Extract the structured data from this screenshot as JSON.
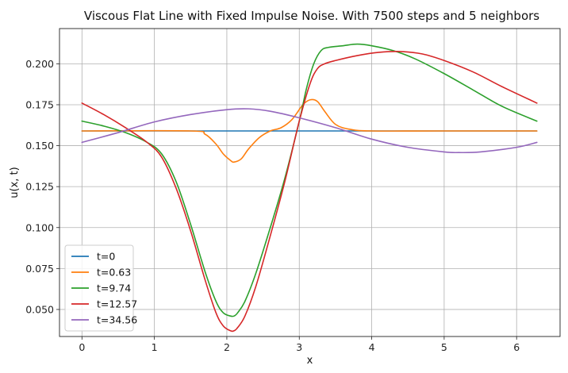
{
  "chart_data": {
    "type": "line",
    "title": "Viscous Flat Line with Fixed Impulse Noise. With 7500 steps and 5 neighbors",
    "xlabel": "x",
    "ylabel": "u(x, t)",
    "xlim": [
      -0.31,
      6.6
    ],
    "ylim": [
      0.0335,
      0.2215
    ],
    "xticks": [
      0,
      1,
      2,
      3,
      4,
      5,
      6
    ],
    "xtick_labels": [
      "0",
      "1",
      "2",
      "3",
      "4",
      "5",
      "6"
    ],
    "yticks": [
      0.05,
      0.075,
      0.1,
      0.125,
      0.15,
      0.175,
      0.2
    ],
    "ytick_labels": [
      "0.050",
      "0.075",
      "0.100",
      "0.125",
      "0.150",
      "0.175",
      "0.200"
    ],
    "grid": true,
    "legend_position": "bottom-left",
    "series": [
      {
        "name": "t=0",
        "color": "#1f77b4",
        "x": [
          0,
          1,
          2,
          3,
          4,
          5,
          6,
          6.28
        ],
        "y": [
          0.159,
          0.159,
          0.159,
          0.159,
          0.159,
          0.159,
          0.159,
          0.159
        ]
      },
      {
        "name": "t=0.63",
        "color": "#ff7f0e",
        "x": [
          0,
          1.5,
          1.7,
          1.85,
          1.95,
          2.05,
          2.1,
          2.2,
          2.3,
          2.45,
          2.6,
          2.75,
          2.9,
          3.05,
          3.15,
          3.25,
          3.35,
          3.5,
          3.7,
          4.0,
          5.0,
          6.28
        ],
        "y": [
          0.159,
          0.159,
          0.157,
          0.151,
          0.145,
          0.141,
          0.14,
          0.142,
          0.148,
          0.155,
          0.159,
          0.161,
          0.166,
          0.175,
          0.178,
          0.177,
          0.171,
          0.163,
          0.16,
          0.159,
          0.159,
          0.159
        ]
      },
      {
        "name": "t=9.74",
        "color": "#2ca02c",
        "x": [
          0,
          0.3,
          0.6,
          0.9,
          1.1,
          1.3,
          1.5,
          1.7,
          1.85,
          1.95,
          2.05,
          2.1,
          2.15,
          2.25,
          2.4,
          2.6,
          2.8,
          3.0,
          3.1,
          3.2,
          3.3,
          3.4,
          3.6,
          3.8,
          4.0,
          4.3,
          4.6,
          5.0,
          5.4,
          5.8,
          6.28
        ],
        "y": [
          0.165,
          0.162,
          0.158,
          0.152,
          0.145,
          0.128,
          0.102,
          0.073,
          0.055,
          0.048,
          0.046,
          0.046,
          0.048,
          0.055,
          0.072,
          0.1,
          0.13,
          0.165,
          0.185,
          0.2,
          0.208,
          0.21,
          0.211,
          0.212,
          0.211,
          0.208,
          0.203,
          0.194,
          0.184,
          0.174,
          0.165
        ]
      },
      {
        "name": "t=12.57",
        "color": "#d62728",
        "x": [
          0,
          0.3,
          0.6,
          0.9,
          1.1,
          1.3,
          1.5,
          1.7,
          1.85,
          1.95,
          2.05,
          2.1,
          2.15,
          2.25,
          2.4,
          2.6,
          2.8,
          3.0,
          3.15,
          3.25,
          3.35,
          3.5,
          3.8,
          4.1,
          4.4,
          4.7,
          5.0,
          5.4,
          5.8,
          6.28
        ],
        "y": [
          0.176,
          0.169,
          0.161,
          0.152,
          0.143,
          0.124,
          0.098,
          0.068,
          0.048,
          0.04,
          0.037,
          0.037,
          0.039,
          0.046,
          0.064,
          0.095,
          0.128,
          0.165,
          0.188,
          0.197,
          0.2,
          0.202,
          0.205,
          0.207,
          0.2075,
          0.206,
          0.202,
          0.195,
          0.186,
          0.176
        ]
      },
      {
        "name": "t=34.56",
        "color": "#9467bd",
        "x": [
          0,
          0.5,
          1.0,
          1.5,
          2.0,
          2.3,
          2.6,
          3.0,
          3.5,
          4.0,
          4.5,
          5.0,
          5.2,
          5.5,
          6.0,
          6.28
        ],
        "y": [
          0.152,
          0.158,
          0.1645,
          0.169,
          0.172,
          0.1725,
          0.171,
          0.167,
          0.161,
          0.154,
          0.149,
          0.1462,
          0.1458,
          0.1462,
          0.149,
          0.152
        ]
      }
    ]
  }
}
